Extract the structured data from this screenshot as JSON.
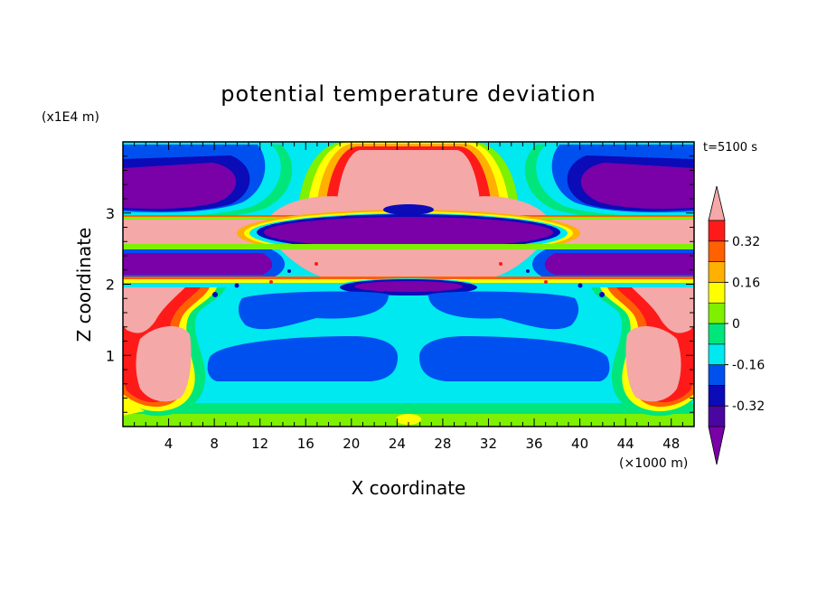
{
  "chart_data": {
    "type": "heatmap",
    "title": "potential temperature deviation",
    "xlabel": "X coordinate",
    "ylabel": "Z coordinate",
    "x_unit": "(×1000 m)",
    "y_unit": "(x1E4 m)",
    "time_label": "t=5100 s",
    "xlim": [
      0,
      50
    ],
    "ylim": [
      0,
      4
    ],
    "xticks": [
      "4",
      "8",
      "12",
      "16",
      "20",
      "24",
      "28",
      "32",
      "36",
      "40",
      "44",
      "48"
    ],
    "yticks": [
      "1",
      "2",
      "3"
    ],
    "colorbar": {
      "levels": [
        {
          "upper": null,
          "color": "#7a00a8"
        },
        {
          "upper": -0.32,
          "color": "#4a06a0"
        },
        {
          "upper": -0.24,
          "color": "#0b0bb8"
        },
        {
          "upper": -0.16,
          "color": "#0050f0"
        },
        {
          "upper": -0.08,
          "color": "#00e8f0"
        },
        {
          "upper": 0,
          "color": "#00e67a"
        },
        {
          "upper": 0.08,
          "color": "#7ef000"
        },
        {
          "upper": 0.16,
          "color": "#ffff00"
        },
        {
          "upper": 0.24,
          "color": "#ffb000"
        },
        {
          "upper": 0.32,
          "color": "#ff6000"
        },
        {
          "upper": 0.4,
          "color": "#ff1a1a"
        },
        {
          "upper": null,
          "color": "#f4a8a8"
        }
      ],
      "labels": [
        "0.32",
        "0.16",
        "0",
        "-0.16",
        "-0.32"
      ],
      "label_values": [
        0.32,
        0.16,
        0,
        -0.16,
        -0.32
      ]
    }
  }
}
